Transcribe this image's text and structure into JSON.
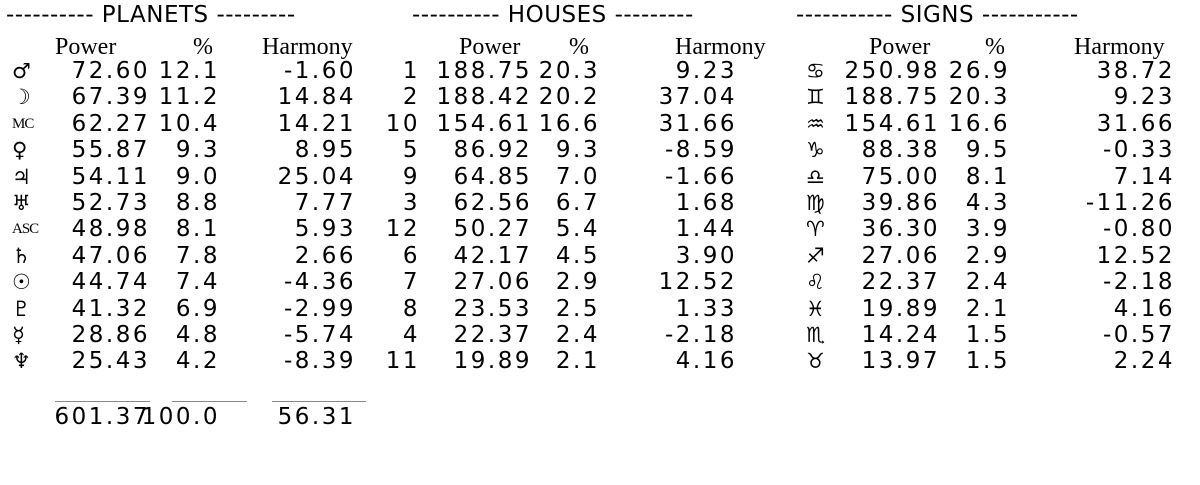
{
  "planets": {
    "title": "---------- PLANETS ---------",
    "headers": [
      "Power",
      "%",
      "Harmony"
    ],
    "rows": [
      {
        "symbol": "♂︎",
        "name": "Mars",
        "power": "72.60",
        "pct": "12.1",
        "harmony": "-1.60"
      },
      {
        "symbol": "☽︎",
        "name": "Moon",
        "power": "67.39",
        "pct": "11.2",
        "harmony": "14.84"
      },
      {
        "symbol": "MC",
        "name": "Midheaven",
        "power": "62.27",
        "pct": "10.4",
        "harmony": "14.21"
      },
      {
        "symbol": "♀︎",
        "name": "Venus",
        "power": "55.87",
        "pct": "9.3",
        "harmony": "8.95"
      },
      {
        "symbol": "♃︎",
        "name": "Jupiter",
        "power": "54.11",
        "pct": "9.0",
        "harmony": "25.04"
      },
      {
        "symbol": "♅︎",
        "name": "Uranus",
        "power": "52.73",
        "pct": "8.8",
        "harmony": "7.77"
      },
      {
        "symbol": "ASC",
        "name": "Ascendant",
        "power": "48.98",
        "pct": "8.1",
        "harmony": "5.93"
      },
      {
        "symbol": "♄︎",
        "name": "Saturn",
        "power": "47.06",
        "pct": "7.8",
        "harmony": "2.66"
      },
      {
        "symbol": "☉︎",
        "name": "Sun",
        "power": "44.74",
        "pct": "7.4",
        "harmony": "-4.36"
      },
      {
        "symbol": "♇︎",
        "name": "Pluto",
        "power": "41.32",
        "pct": "6.9",
        "harmony": "-2.99"
      },
      {
        "symbol": "☿︎",
        "name": "Mercury",
        "power": "28.86",
        "pct": "4.8",
        "harmony": "-5.74"
      },
      {
        "symbol": "♆︎",
        "name": "Neptune",
        "power": "25.43",
        "pct": "4.2",
        "harmony": "-8.39"
      }
    ],
    "totals": {
      "power": "601.37",
      "pct": "100.0",
      "harmony": "56.31"
    }
  },
  "houses": {
    "title": "---------- HOUSES ---------",
    "headers": [
      "Power",
      "%",
      "Harmony"
    ],
    "rows": [
      {
        "symbol": "1",
        "power": "188.75",
        "pct": "20.3",
        "harmony": "9.23"
      },
      {
        "symbol": "2",
        "power": "188.42",
        "pct": "20.2",
        "harmony": "37.04"
      },
      {
        "symbol": "10",
        "power": "154.61",
        "pct": "16.6",
        "harmony": "31.66"
      },
      {
        "symbol": "5",
        "power": "86.92",
        "pct": "9.3",
        "harmony": "-8.59"
      },
      {
        "symbol": "9",
        "power": "64.85",
        "pct": "7.0",
        "harmony": "-1.66"
      },
      {
        "symbol": "3",
        "power": "62.56",
        "pct": "6.7",
        "harmony": "1.68"
      },
      {
        "symbol": "12",
        "power": "50.27",
        "pct": "5.4",
        "harmony": "1.44"
      },
      {
        "symbol": "6",
        "power": "42.17",
        "pct": "4.5",
        "harmony": "3.90"
      },
      {
        "symbol": "7",
        "power": "27.06",
        "pct": "2.9",
        "harmony": "12.52"
      },
      {
        "symbol": "8",
        "power": "23.53",
        "pct": "2.5",
        "harmony": "1.33"
      },
      {
        "symbol": "4",
        "power": "22.37",
        "pct": "2.4",
        "harmony": "-2.18"
      },
      {
        "symbol": "11",
        "power": "19.89",
        "pct": "2.1",
        "harmony": "4.16"
      }
    ]
  },
  "signs": {
    "title": "----------- SIGNS -----------",
    "headers": [
      "Power",
      "%",
      "Harmony"
    ],
    "rows": [
      {
        "symbol": "♋︎",
        "name": "Cancer",
        "power": "250.98",
        "pct": "26.9",
        "harmony": "38.72"
      },
      {
        "symbol": "♊︎",
        "name": "Gemini",
        "power": "188.75",
        "pct": "20.3",
        "harmony": "9.23"
      },
      {
        "symbol": "♒︎",
        "name": "Aquarius",
        "power": "154.61",
        "pct": "16.6",
        "harmony": "31.66"
      },
      {
        "symbol": "♑︎",
        "name": "Capricorn",
        "power": "88.38",
        "pct": "9.5",
        "harmony": "-0.33"
      },
      {
        "symbol": "♎︎",
        "name": "Libra",
        "power": "75.00",
        "pct": "8.1",
        "harmony": "7.14"
      },
      {
        "symbol": "♍︎",
        "name": "Virgo",
        "power": "39.86",
        "pct": "4.3",
        "harmony": "-11.26"
      },
      {
        "symbol": "♈︎",
        "name": "Aries",
        "power": "36.30",
        "pct": "3.9",
        "harmony": "-0.80"
      },
      {
        "symbol": "♐︎",
        "name": "Sagittarius",
        "power": "27.06",
        "pct": "2.9",
        "harmony": "12.52"
      },
      {
        "symbol": "♌︎",
        "name": "Leo",
        "power": "22.37",
        "pct": "2.4",
        "harmony": "-2.18"
      },
      {
        "symbol": "♓︎",
        "name": "Pisces",
        "power": "19.89",
        "pct": "2.1",
        "harmony": "4.16"
      },
      {
        "symbol": "♏︎",
        "name": "Scorpio",
        "power": "14.24",
        "pct": "1.5",
        "harmony": "-0.57"
      },
      {
        "symbol": "♉︎",
        "name": "Taurus",
        "power": "13.97",
        "pct": "1.5",
        "harmony": "2.24"
      }
    ]
  }
}
